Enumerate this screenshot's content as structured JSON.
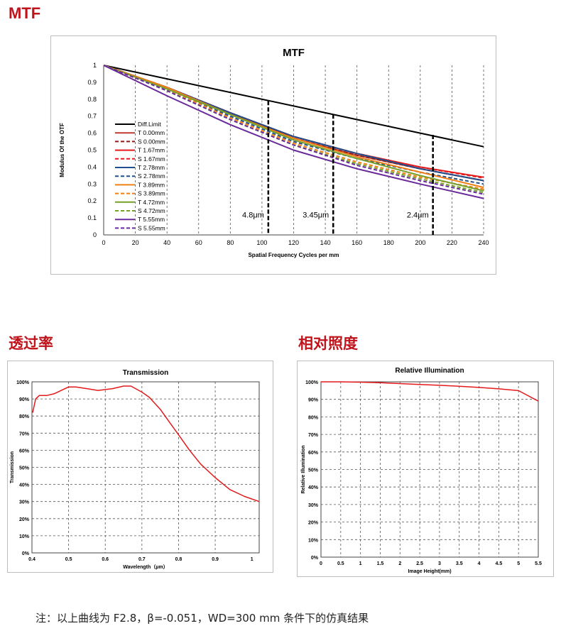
{
  "headings": {
    "mtf": "MTF",
    "transmission": "透过率",
    "relative": "相对照度"
  },
  "note": "注：以上曲线为 F2.8，β=-0.051，WD=300 mm 条件下的仿真结果",
  "chart_data": [
    {
      "type": "line",
      "title": "MTF",
      "xlabel": "Spatial  Frequency Cycles per mm",
      "ylabel": "Modulus Of  the OTF",
      "xlim": [
        0,
        240
      ],
      "ylim": [
        0,
        1
      ],
      "xticks": [
        "0",
        "20",
        "40",
        "60",
        "80",
        "100",
        "120",
        "140",
        "160",
        "180",
        "200",
        "220",
        "240"
      ],
      "yticks": [
        "0",
        "0.1",
        "0.2",
        "0.3",
        "0.4",
        "0.5",
        "0.6",
        "0.7",
        "0.8",
        "0.9",
        "1"
      ],
      "grid": "vertical dashed",
      "legend": "left-center",
      "series": [
        {
          "name": "Diff.Limit",
          "color": "#000000",
          "dash": false,
          "x": [
            0,
            240
          ],
          "y": [
            1,
            0.52
          ]
        },
        {
          "name": "T 0.00mm",
          "color": "#c0392b",
          "dash": false,
          "x": [
            0,
            40,
            80,
            120,
            160,
            200,
            240
          ],
          "y": [
            1,
            0.87,
            0.72,
            0.57,
            0.47,
            0.39,
            0.32
          ]
        },
        {
          "name": "S 0.00mm",
          "color": "#8b1a1a",
          "dash": true,
          "x": [
            0,
            40,
            80,
            120,
            160,
            200,
            240
          ],
          "y": [
            1,
            0.87,
            0.72,
            0.57,
            0.47,
            0.39,
            0.32
          ]
        },
        {
          "name": "T 1.67mm",
          "color": "#e31a1c",
          "dash": false,
          "x": [
            0,
            40,
            80,
            120,
            160,
            200,
            240
          ],
          "y": [
            1,
            0.87,
            0.72,
            0.58,
            0.48,
            0.4,
            0.34
          ]
        },
        {
          "name": "S 1.67mm",
          "color": "#e31a1c",
          "dash": true,
          "x": [
            0,
            40,
            80,
            120,
            160,
            200,
            240
          ],
          "y": [
            1,
            0.87,
            0.72,
            0.58,
            0.48,
            0.4,
            0.335
          ]
        },
        {
          "name": "T 2.78mm",
          "color": "#1f4e8c",
          "dash": false,
          "x": [
            0,
            40,
            80,
            120,
            160,
            200,
            240
          ],
          "y": [
            1,
            0.87,
            0.72,
            0.58,
            0.48,
            0.39,
            0.32
          ]
        },
        {
          "name": "S 2.78mm",
          "color": "#1f4e8c",
          "dash": true,
          "x": [
            0,
            40,
            80,
            120,
            160,
            200,
            240
          ],
          "y": [
            1,
            0.86,
            0.7,
            0.55,
            0.45,
            0.37,
            0.3
          ]
        },
        {
          "name": "T 3.89mm",
          "color": "#f07f16",
          "dash": false,
          "x": [
            0,
            40,
            80,
            120,
            160,
            200,
            240
          ],
          "y": [
            1,
            0.87,
            0.71,
            0.57,
            0.46,
            0.37,
            0.28
          ]
        },
        {
          "name": "S 3.89mm",
          "color": "#f07f16",
          "dash": true,
          "x": [
            0,
            40,
            80,
            120,
            160,
            200,
            240
          ],
          "y": [
            1,
            0.86,
            0.69,
            0.54,
            0.43,
            0.34,
            0.27
          ]
        },
        {
          "name": "T 4.72mm",
          "color": "#76a02c",
          "dash": false,
          "x": [
            0,
            40,
            80,
            120,
            160,
            200,
            240
          ],
          "y": [
            1,
            0.86,
            0.71,
            0.56,
            0.45,
            0.35,
            0.26
          ]
        },
        {
          "name": "S 4.72mm",
          "color": "#76a02c",
          "dash": true,
          "x": [
            0,
            40,
            80,
            120,
            160,
            200,
            240
          ],
          "y": [
            1,
            0.85,
            0.68,
            0.53,
            0.42,
            0.33,
            0.25
          ]
        },
        {
          "name": "T 5.55mm",
          "color": "#6a2b9a",
          "dash": false,
          "x": [
            0,
            40,
            80,
            120,
            160,
            200,
            240
          ],
          "y": [
            1,
            0.82,
            0.65,
            0.5,
            0.39,
            0.3,
            0.215
          ]
        },
        {
          "name": "S 5.55mm",
          "color": "#6a2b9a",
          "dash": true,
          "x": [
            0,
            40,
            80,
            120,
            160,
            200,
            240
          ],
          "y": [
            1,
            0.85,
            0.68,
            0.53,
            0.41,
            0.32,
            0.24
          ]
        }
      ],
      "markers": [
        {
          "label": "4.8μm",
          "x": 104,
          "y_top": 0.79
        },
        {
          "label": "3.45μm",
          "x": 145,
          "y_top": 0.71
        },
        {
          "label": "2.4μm",
          "x": 208,
          "y_top": 0.59
        }
      ]
    },
    {
      "type": "line",
      "title": "Transmission",
      "xlabel": "Wavelength（μm）",
      "ylabel": "Transmission",
      "xlim": [
        0.4,
        1.02
      ],
      "ylim": [
        0,
        100
      ],
      "xticks": [
        "0.4",
        "0.5",
        "0.6",
        "0.7",
        "0.8",
        "0.9",
        "1"
      ],
      "yticks": [
        "0%",
        "10%",
        "20%",
        "30%",
        "40%",
        "50%",
        "60%",
        "70%",
        "80%",
        "90%",
        "100%"
      ],
      "grid": "dashed",
      "series": [
        {
          "color": "#e31a1c",
          "x": [
            0.402,
            0.41,
            0.42,
            0.44,
            0.46,
            0.48,
            0.5,
            0.52,
            0.55,
            0.58,
            0.62,
            0.65,
            0.67,
            0.7,
            0.72,
            0.75,
            0.78,
            0.8,
            0.83,
            0.86,
            0.9,
            0.94,
            0.98,
            1.02
          ],
          "y": [
            82,
            90,
            92,
            92,
            93,
            95,
            97,
            97,
            96,
            95,
            96,
            97.5,
            97.5,
            94,
            91,
            84,
            75,
            69,
            60,
            52,
            44,
            37,
            33,
            30
          ]
        }
      ]
    },
    {
      "type": "line",
      "title": "Relative Illumination",
      "xlabel": "Image Height(mm)",
      "ylabel": "Relative Illumination",
      "xlim": [
        0,
        5.5
      ],
      "ylim": [
        0,
        100
      ],
      "xticks": [
        "0",
        "0.5",
        "1",
        "1.5",
        "2",
        "2.5",
        "3",
        "3.5",
        "4",
        "4.5",
        "5",
        "5.5"
      ],
      "yticks": [
        "0%",
        "10%",
        "20%",
        "30%",
        "40%",
        "50%",
        "60%",
        "70%",
        "80%",
        "90%",
        "100%"
      ],
      "grid": "dashed",
      "series": [
        {
          "color": "#e31a1c",
          "x": [
            0,
            0.5,
            1,
            1.5,
            2,
            2.5,
            3,
            3.5,
            4,
            4.5,
            5,
            5.5
          ],
          "y": [
            100,
            100,
            99.8,
            99.5,
            99,
            98.5,
            98,
            97.5,
            96.8,
            96,
            95,
            89
          ]
        }
      ]
    }
  ]
}
